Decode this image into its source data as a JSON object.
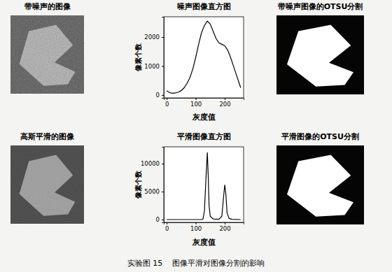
{
  "panels": {
    "noisy_image": {
      "title": "带噪声的图像"
    },
    "smoothed_image": {
      "title": "高斯平滑的图像"
    },
    "noisy_otsu": {
      "title": "带噪声图像的OTSU分割"
    },
    "smoothed_otsu": {
      "title": "平滑图像的OTSU分割"
    }
  },
  "caption": "实验图 15    图像平滑对图像分割的影响",
  "chart_data": [
    {
      "type": "line",
      "title": "噪声图像直方图",
      "xlabel": "灰度值",
      "ylabel": "像素个数",
      "x": [
        0,
        10,
        20,
        30,
        40,
        50,
        60,
        70,
        80,
        90,
        100,
        110,
        120,
        130,
        140,
        145,
        150,
        160,
        170,
        180,
        190,
        200,
        210,
        220,
        230,
        240,
        250,
        255
      ],
      "values": [
        150,
        80,
        60,
        70,
        100,
        150,
        250,
        400,
        600,
        900,
        1300,
        1750,
        2150,
        2400,
        2550,
        2500,
        2450,
        2200,
        1950,
        1800,
        1750,
        1700,
        1550,
        1300,
        1000,
        700,
        400,
        250
      ],
      "color": "#000000",
      "xlim": [
        -10,
        265
      ],
      "ylim": [
        -100,
        2700
      ],
      "xticks": [
        0,
        100,
        200
      ],
      "yticks": [
        0,
        1000,
        2000
      ]
    },
    {
      "type": "line",
      "title": "平滑图像直方图",
      "xlabel": "灰度值",
      "ylabel": "像素个数",
      "x": [
        0,
        60,
        120,
        125,
        130,
        135,
        140,
        143,
        146,
        150,
        160,
        180,
        190,
        195,
        200,
        204,
        208,
        215,
        225,
        255
      ],
      "values": [
        0,
        0,
        0,
        100,
        1500,
        7000,
        12000,
        8000,
        2500,
        600,
        100,
        50,
        600,
        3500,
        6200,
        4500,
        1200,
        200,
        50,
        0
      ],
      "color": "#000000",
      "xlim": [
        -10,
        265
      ],
      "ylim": [
        -500,
        13000
      ],
      "xticks": [
        0,
        100,
        200
      ],
      "yticks": [
        0,
        5000,
        10000
      ]
    }
  ]
}
